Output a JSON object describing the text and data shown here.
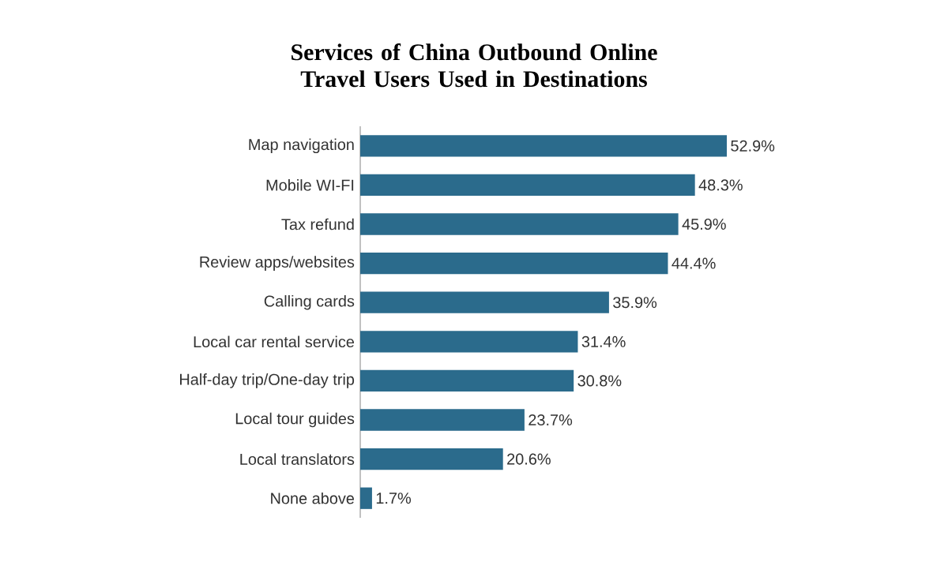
{
  "chart_data": {
    "type": "bar",
    "orientation": "horizontal",
    "title": "Services of China Outbound Online Travel Users Used in Destinations",
    "categories": [
      "Map navigation",
      "Mobile WI-FI",
      "Tax refund",
      "Review apps/websites",
      "Calling cards",
      "Local car rental service",
      "Half-day trip/One-day trip",
      "Local tour guides",
      "Local translators",
      "None above"
    ],
    "values": [
      52.9,
      48.3,
      45.9,
      44.4,
      35.9,
      31.4,
      30.8,
      23.7,
      20.6,
      1.7
    ],
    "value_labels": [
      "52.9%",
      "48.3%",
      "45.9%",
      "44.4%",
      "35.9%",
      "31.4%",
      "30.8%",
      "23.7%",
      "20.6%",
      "1.7%"
    ],
    "color": "#2b6b8c",
    "tick_labels": "y"
  }
}
